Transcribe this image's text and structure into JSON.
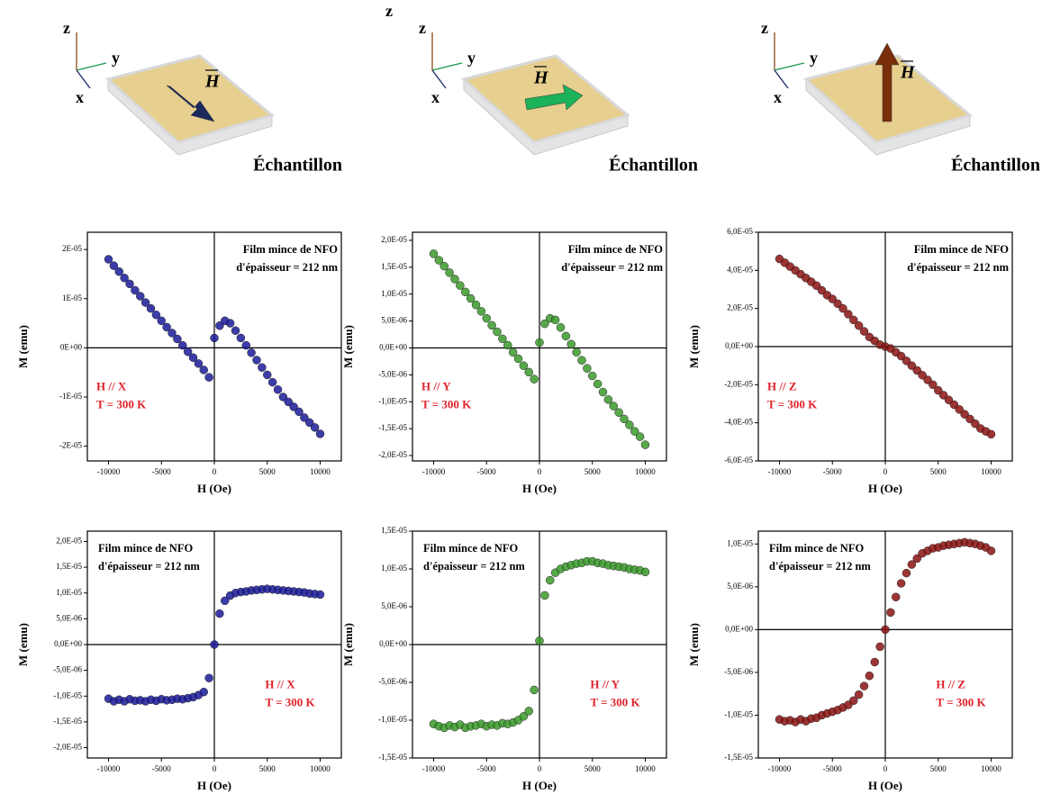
{
  "diagrams": [
    {
      "z": "z",
      "y": "y",
      "x": "x",
      "field": "H",
      "sample": "Échantillon"
    },
    {
      "extra_label": "z",
      "z": "z",
      "y": "y",
      "x": "x",
      "field": "H",
      "sample": "Échantillon"
    },
    {
      "z": "z",
      "y": "y",
      "x": "x",
      "field": "H",
      "sample": "Échantillon"
    }
  ],
  "chart_data": [
    {
      "type": "scatter",
      "x_label": "H (Oe)",
      "y_label": "M (emu)",
      "color": "#1a1a9a",
      "note": [
        "Film mince de NFO",
        "d'épaisseur = 212 nm"
      ],
      "condition": [
        "H // X",
        "T = 300 K"
      ],
      "xlim": [
        -12000,
        12000
      ],
      "xticks": [
        -10000,
        -5000,
        0,
        5000,
        10000
      ],
      "ylim": [
        -2.3e-05,
        2.35e-05
      ],
      "yticks": [
        {
          "value": -2e-05,
          "label": "-2E-05"
        },
        {
          "value": -1e-05,
          "label": "-1E-05"
        },
        {
          "value": 0,
          "label": "0E+00"
        },
        {
          "value": 1e-05,
          "label": "1E-05"
        },
        {
          "value": 2e-05,
          "label": "2E-05"
        }
      ],
      "x": [
        -10000,
        -9500,
        -9000,
        -8500,
        -8000,
        -7500,
        -7000,
        -6500,
        -6000,
        -5500,
        -5000,
        -4500,
        -4000,
        -3500,
        -3000,
        -2500,
        -2000,
        -1500,
        -1000,
        -500,
        0,
        500,
        1000,
        1500,
        2000,
        2500,
        3000,
        3500,
        4000,
        4500,
        5000,
        5500,
        6000,
        6500,
        7000,
        7500,
        8000,
        8500,
        9000,
        9500,
        10000
      ],
      "values": [
        1.8e-05,
        1.67e-05,
        1.55e-05,
        1.42e-05,
        1.3e-05,
        1.17e-05,
        1.05e-05,
        9.2e-06,
        8e-06,
        6.7e-06,
        5.5e-06,
        4.2e-06,
        3e-06,
        1.8e-06,
        5e-07,
        -8e-07,
        -2e-06,
        -3.2e-06,
        -4.5e-06,
        -6e-06,
        2e-06,
        4.5e-06,
        5.5e-06,
        5e-06,
        3.5e-06,
        2e-06,
        5e-07,
        -1e-06,
        -2.5e-06,
        -4e-06,
        -5.5e-06,
        -7e-06,
        -8.5e-06,
        -1e-05,
        -1.1e-05,
        -1.2e-05,
        -1.3e-05,
        -1.42e-05,
        -1.52e-05,
        -1.62e-05,
        -1.75e-05
      ]
    },
    {
      "type": "scatter",
      "x_label": "H (Oe)",
      "y_label": "M (emu)",
      "color": "#3a9a2a",
      "note": [
        "Film mince de NFO",
        "d'épaisseur = 212 nm"
      ],
      "condition": [
        "H // Y",
        "T = 300 K"
      ],
      "xlim": [
        -12000,
        12000
      ],
      "xticks": [
        -10000,
        -5000,
        0,
        5000,
        10000
      ],
      "ylim": [
        -2.1e-05,
        2.15e-05
      ],
      "yticks": [
        {
          "value": -2e-05,
          "label": "-2,0E-05"
        },
        {
          "value": -1.5e-05,
          "label": "-1,5E-05"
        },
        {
          "value": -1e-05,
          "label": "-1,0E-05"
        },
        {
          "value": -5e-06,
          "label": "-5,0E-06"
        },
        {
          "value": 0,
          "label": "0,0E+00"
        },
        {
          "value": 5e-06,
          "label": "5,0E-06"
        },
        {
          "value": 1e-05,
          "label": "1,0E-05"
        },
        {
          "value": 1.5e-05,
          "label": "1,5E-05"
        },
        {
          "value": 2e-05,
          "label": "2,0E-05"
        }
      ],
      "x": [
        -10000,
        -9500,
        -9000,
        -8500,
        -8000,
        -7500,
        -7000,
        -6500,
        -6000,
        -5500,
        -5000,
        -4500,
        -4000,
        -3500,
        -3000,
        -2500,
        -2000,
        -1500,
        -1000,
        -500,
        0,
        500,
        1000,
        1500,
        2000,
        2500,
        3000,
        3500,
        4000,
        4500,
        5000,
        5500,
        6000,
        6500,
        7000,
        7500,
        8000,
        8500,
        9000,
        9500,
        10000
      ],
      "values": [
        1.75e-05,
        1.63e-05,
        1.52e-05,
        1.4e-05,
        1.28e-05,
        1.16e-05,
        1.04e-05,
        9.2e-06,
        8e-06,
        6.8e-06,
        5.5e-06,
        4.2e-06,
        3e-06,
        1.7e-06,
        5e-07,
        -8e-07,
        -2e-06,
        -3.3e-06,
        -4.5e-06,
        -5.8e-06,
        1e-06,
        4.5e-06,
        5.5e-06,
        5.2e-06,
        3.8e-06,
        2.2e-06,
        7e-07,
        -8e-07,
        -2.3e-06,
        -3.8e-06,
        -5.2e-06,
        -6.7e-06,
        -8.2e-06,
        -9.6e-06,
        -1.08e-05,
        -1.2e-05,
        -1.32e-05,
        -1.43e-05,
        -1.55e-05,
        -1.65e-05,
        -1.8e-05
      ]
    },
    {
      "type": "scatter",
      "x_label": "H (Oe)",
      "y_label": "M (emu)",
      "color": "#8b1212",
      "note": [
        "Film mince de NFO",
        "d'épaisseur = 212 nm"
      ],
      "condition": [
        "H // Z",
        "T = 300 K"
      ],
      "xlim": [
        -12000,
        12000
      ],
      "xticks": [
        -10000,
        -5000,
        0,
        5000,
        10000
      ],
      "ylim": [
        -6e-05,
        6e-05
      ],
      "yticks": [
        {
          "value": -6e-05,
          "label": "-6,0E-05"
        },
        {
          "value": -4e-05,
          "label": "-4,0E-05"
        },
        {
          "value": -2e-05,
          "label": "-2,0E-05"
        },
        {
          "value": 0,
          "label": "0,0E+00"
        },
        {
          "value": 2e-05,
          "label": "2,0E-05"
        },
        {
          "value": 4e-05,
          "label": "4,0E-05"
        },
        {
          "value": 6e-05,
          "label": "6,0E-05"
        }
      ],
      "x": [
        -10000,
        -9500,
        -9000,
        -8500,
        -8000,
        -7500,
        -7000,
        -6500,
        -6000,
        -5500,
        -5000,
        -4500,
        -4000,
        -3500,
        -3000,
        -2500,
        -2000,
        -1500,
        -1000,
        -500,
        0,
        500,
        1000,
        1500,
        2000,
        2500,
        3000,
        3500,
        4000,
        4500,
        5000,
        5500,
        6000,
        6500,
        7000,
        7500,
        8000,
        8500,
        9000,
        9500,
        10000
      ],
      "values": [
        4.6e-05,
        4.4e-05,
        4.2e-05,
        4e-05,
        3.8e-05,
        3.6e-05,
        3.4e-05,
        3.2e-05,
        2.95e-05,
        2.7e-05,
        2.5e-05,
        2.25e-05,
        2e-05,
        1.7e-05,
        1.4e-05,
        1.1e-05,
        8e-06,
        5e-06,
        3e-06,
        1e-06,
        0,
        -1e-06,
        -3e-06,
        -5e-06,
        -7.5e-06,
        -1e-05,
        -1.25e-05,
        -1.5e-05,
        -1.75e-05,
        -2e-05,
        -2.3e-05,
        -2.55e-05,
        -2.8e-05,
        -3.05e-05,
        -3.3e-05,
        -3.55e-05,
        -3.8e-05,
        -4.05e-05,
        -4.3e-05,
        -4.45e-05,
        -4.6e-05
      ]
    },
    {
      "type": "scatter",
      "x_label": "H (Oe)",
      "y_label": "M (emu)",
      "color": "#1a1a9a",
      "note": [
        "Film mince de NFO",
        "d'épaisseur = 212 nm"
      ],
      "condition": [
        "H // X",
        "T = 300 K"
      ],
      "xlim": [
        -12000,
        12000
      ],
      "xticks": [
        -10000,
        -5000,
        0,
        5000,
        10000
      ],
      "ylim": [
        -2.2e-05,
        2.2e-05
      ],
      "yticks": [
        {
          "value": -2e-05,
          "label": "-2,0E-05"
        },
        {
          "value": -1.5e-05,
          "label": "-1,5E-05"
        },
        {
          "value": -1e-05,
          "label": "-1,0E-05"
        },
        {
          "value": -5e-06,
          "label": "-5,0E-06"
        },
        {
          "value": 0,
          "label": "0,0E+00"
        },
        {
          "value": 5e-06,
          "label": "5,0E-06"
        },
        {
          "value": 1e-05,
          "label": "1,0E-05"
        },
        {
          "value": 1.5e-05,
          "label": "1,5E-05"
        },
        {
          "value": 2e-05,
          "label": "2,0E-05"
        }
      ],
      "x": [
        -10000,
        -9500,
        -9000,
        -8500,
        -8000,
        -7500,
        -7000,
        -6500,
        -6000,
        -5500,
        -5000,
        -4500,
        -4000,
        -3500,
        -3000,
        -2500,
        -2000,
        -1500,
        -1000,
        -500,
        0,
        500,
        1000,
        1500,
        2000,
        2500,
        3000,
        3500,
        4000,
        4500,
        5000,
        5500,
        6000,
        6500,
        7000,
        7500,
        8000,
        8500,
        9000,
        9500,
        10000
      ],
      "values": [
        -1.05e-05,
        -1.1e-05,
        -1.07e-05,
        -1.1e-05,
        -1.06e-05,
        -1.09e-05,
        -1.08e-05,
        -1.1e-05,
        -1.07e-05,
        -1.09e-05,
        -1.06e-05,
        -1.08e-05,
        -1.07e-05,
        -1.05e-05,
        -1.06e-05,
        -1.04e-05,
        -1.02e-05,
        -9.8e-06,
        -9.2e-06,
        -6.5e-06,
        0,
        6e-06,
        8.5e-06,
        9.5e-06,
        1e-05,
        1.02e-05,
        1.03e-05,
        1.05e-05,
        1.06e-05,
        1.07e-05,
        1.08e-05,
        1.07e-05,
        1.06e-05,
        1.05e-05,
        1.04e-05,
        1.03e-05,
        1.02e-05,
        1.01e-05,
        9.9e-06,
        9.8e-06,
        9.7e-06
      ]
    },
    {
      "type": "scatter",
      "x_label": "H (Oe)",
      "y_label": "M (emu)",
      "color": "#3a9a2a",
      "note": [
        "Film mince de NFO",
        "d'épaisseur = 212 nm"
      ],
      "condition": [
        "H // Y",
        "T = 300 K"
      ],
      "xlim": [
        -12000,
        12000
      ],
      "xticks": [
        -10000,
        -5000,
        0,
        5000,
        10000
      ],
      "ylim": [
        -1.5e-05,
        1.5e-05
      ],
      "yticks": [
        {
          "value": -1.5e-05,
          "label": "-1,5E-05"
        },
        {
          "value": -1e-05,
          "label": "-1,0E-05"
        },
        {
          "value": -5e-06,
          "label": "-5,0E-06"
        },
        {
          "value": 0,
          "label": "0,0E+00"
        },
        {
          "value": 5e-06,
          "label": "5,0E-06"
        },
        {
          "value": 1e-05,
          "label": "1,0E-05"
        },
        {
          "value": 1.5e-05,
          "label": "1,5E-05"
        }
      ],
      "x": [
        -10000,
        -9500,
        -9000,
        -8500,
        -8000,
        -7500,
        -7000,
        -6500,
        -6000,
        -5500,
        -5000,
        -4500,
        -4000,
        -3500,
        -3000,
        -2500,
        -2000,
        -1500,
        -1000,
        -500,
        0,
        500,
        1000,
        1500,
        2000,
        2500,
        3000,
        3500,
        4000,
        4500,
        5000,
        5500,
        6000,
        6500,
        7000,
        7500,
        8000,
        8500,
        9000,
        9500,
        10000
      ],
      "values": [
        -1.05e-05,
        -1.08e-05,
        -1.1e-05,
        -1.07e-05,
        -1.09e-05,
        -1.06e-05,
        -1.1e-05,
        -1.08e-05,
        -1.07e-05,
        -1.05e-05,
        -1.08e-05,
        -1.06e-05,
        -1.07e-05,
        -1.04e-05,
        -1.05e-05,
        -1.03e-05,
        -1e-05,
        -9.5e-06,
        -8.8e-06,
        -6e-06,
        5e-07,
        6.5e-06,
        8.5e-06,
        9.5e-06,
        1e-05,
        1.03e-05,
        1.05e-05,
        1.07e-05,
        1.08e-05,
        1.1e-05,
        1.1e-05,
        1.08e-05,
        1.07e-05,
        1.05e-05,
        1.04e-05,
        1.03e-05,
        1.02e-05,
        1e-05,
        9.9e-06,
        9.8e-06,
        9.6e-06
      ]
    },
    {
      "type": "scatter",
      "x_label": "H (Oe)",
      "y_label": "M (emu)",
      "color": "#8b1212",
      "note": [
        "Film mince de NFO",
        "d'épaisseur = 212 nm"
      ],
      "condition": [
        "H // Z",
        "T = 300 K"
      ],
      "xlim": [
        -12000,
        12000
      ],
      "xticks": [
        -10000,
        -5000,
        0,
        5000,
        10000
      ],
      "ylim": [
        -1.5e-05,
        1.15e-05
      ],
      "yticks": [
        {
          "value": -1.5e-05,
          "label": "-1,5E-05"
        },
        {
          "value": -1e-05,
          "label": "-1,0E-05"
        },
        {
          "value": -5e-06,
          "label": "-5,0E-06"
        },
        {
          "value": 0,
          "label": "0,0E+00"
        },
        {
          "value": 5e-06,
          "label": "5,0E-06"
        },
        {
          "value": 1e-05,
          "label": "1,0E-05"
        }
      ],
      "x": [
        -10000,
        -9500,
        -9000,
        -8500,
        -8000,
        -7500,
        -7000,
        -6500,
        -6000,
        -5500,
        -5000,
        -4500,
        -4000,
        -3500,
        -3000,
        -2500,
        -2000,
        -1500,
        -1000,
        -500,
        0,
        500,
        1000,
        1500,
        2000,
        2500,
        3000,
        3500,
        4000,
        4500,
        5000,
        5500,
        6000,
        6500,
        7000,
        7500,
        8000,
        8500,
        9000,
        9500,
        10000
      ],
      "values": [
        -1.05e-05,
        -1.07e-05,
        -1.06e-05,
        -1.08e-05,
        -1.05e-05,
        -1.07e-05,
        -1.04e-05,
        -1.03e-05,
        -1e-05,
        -9.8e-06,
        -9.6e-06,
        -9.4e-06,
        -9.1e-06,
        -8.8e-06,
        -8.3e-06,
        -7.6e-06,
        -6.6e-06,
        -5.4e-06,
        -3.8e-06,
        -2e-06,
        0,
        2e-06,
        3.8e-06,
        5.4e-06,
        6.6e-06,
        7.6e-06,
        8.3e-06,
        8.9e-06,
        9.2e-06,
        9.5e-06,
        9.6e-06,
        9.8e-06,
        9.9e-06,
        1e-05,
        1.01e-05,
        1.02e-05,
        1.01e-05,
        1e-05,
        9.8e-06,
        9.6e-06,
        9.2e-06
      ]
    }
  ]
}
